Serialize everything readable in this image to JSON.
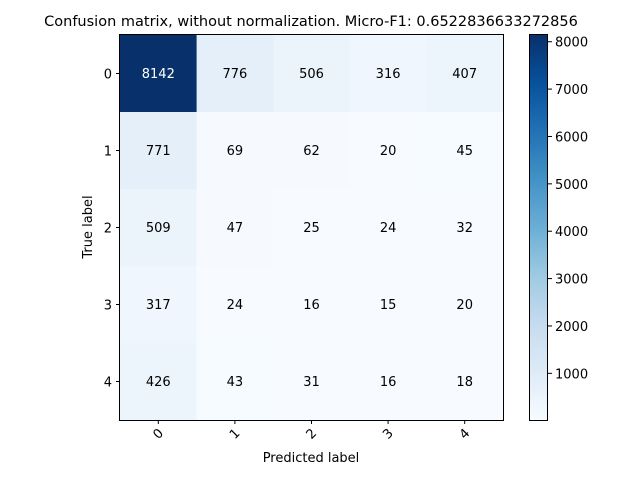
{
  "chart_data": {
    "type": "heatmap",
    "title": "Confusion matrix, without normalization. Micro-F1: 0.6522836633272856",
    "xlabel": "Predicted label",
    "ylabel": "True label",
    "x_categories": [
      "0",
      "1",
      "2",
      "3",
      "4"
    ],
    "y_categories": [
      "0",
      "1",
      "2",
      "3",
      "4"
    ],
    "values": [
      [
        8142,
        776,
        506,
        316,
        407
      ],
      [
        771,
        69,
        62,
        20,
        45
      ],
      [
        509,
        47,
        25,
        24,
        32
      ],
      [
        317,
        24,
        16,
        15,
        20
      ],
      [
        426,
        43,
        31,
        16,
        18
      ]
    ],
    "colormap": "Blues",
    "color_range": [
      15,
      8142
    ],
    "colorbar_ticks": [
      "1000",
      "2000",
      "3000",
      "4000",
      "5000",
      "6000",
      "7000",
      "8000"
    ],
    "x_tick_rotation_deg": 45,
    "grid": false
  }
}
